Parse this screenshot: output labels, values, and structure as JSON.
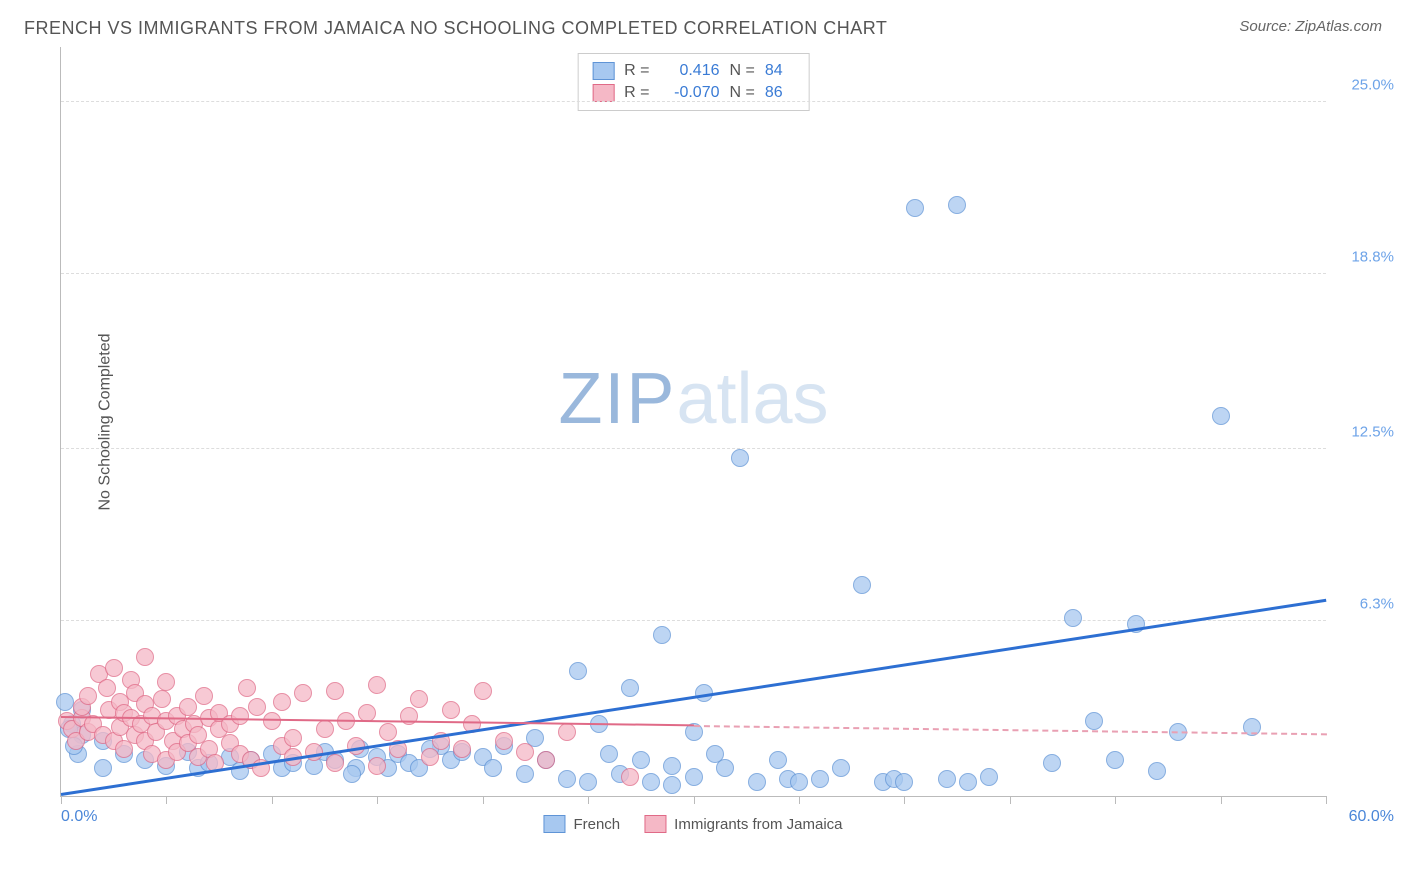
{
  "title": "FRENCH VS IMMIGRANTS FROM JAMAICA NO SCHOOLING COMPLETED CORRELATION CHART",
  "source_prefix": "Source: ",
  "source_name": "ZipAtlas.com",
  "watermark_a": "ZIP",
  "watermark_b": "atlas",
  "chart": {
    "type": "scatter",
    "background_color": "#ffffff",
    "grid_color": "#dddddd",
    "axis_color": "#bbbbbb",
    "xlim": [
      0,
      60
    ],
    "ylim": [
      0,
      27
    ],
    "x_min_label": "0.0%",
    "x_max_label": "60.0%",
    "y_ticks": [
      {
        "value": 6.3,
        "label": "6.3%"
      },
      {
        "value": 12.5,
        "label": "12.5%"
      },
      {
        "value": 18.8,
        "label": "18.8%"
      },
      {
        "value": 25.0,
        "label": "25.0%"
      }
    ],
    "x_tick_positions": [
      0,
      5,
      10,
      15,
      20,
      25,
      30,
      35,
      40,
      45,
      50,
      55,
      60
    ],
    "y_axis_label": "No Schooling Completed",
    "tick_label_color": "#6da3e8",
    "marker_radius": 9,
    "marker_border_width": 1,
    "series": [
      {
        "id": "french",
        "label": "French",
        "fill_color": "#a7c8f0",
        "border_color": "#5f94d6",
        "R": "0.416",
        "N": "84",
        "trend": {
          "x1": 0,
          "y1": 0.0,
          "x2": 60,
          "y2": 7.0,
          "color": "#2d6fd2",
          "width": 3
        },
        "points": [
          [
            0.2,
            3.4
          ],
          [
            0.5,
            2.6
          ],
          [
            0.8,
            1.5
          ],
          [
            1.0,
            2.2
          ],
          [
            2.0,
            2.0
          ],
          [
            2.0,
            1.0
          ],
          [
            3.0,
            1.5
          ],
          [
            4.0,
            1.3
          ],
          [
            5.0,
            1.1
          ],
          [
            6.0,
            1.6
          ],
          [
            6.5,
            1.0
          ],
          [
            7.0,
            1.2
          ],
          [
            8.0,
            1.4
          ],
          [
            8.5,
            0.9
          ],
          [
            9.0,
            1.3
          ],
          [
            10.0,
            1.5
          ],
          [
            10.5,
            1.0
          ],
          [
            11.0,
            1.2
          ],
          [
            12.0,
            1.1
          ],
          [
            12.5,
            1.6
          ],
          [
            13.0,
            1.3
          ],
          [
            14.0,
            1.0
          ],
          [
            14.2,
            1.7
          ],
          [
            15.0,
            1.4
          ],
          [
            15.5,
            1.0
          ],
          [
            16.0,
            1.5
          ],
          [
            16.5,
            1.2
          ],
          [
            17.0,
            1.0
          ],
          [
            18.0,
            1.8
          ],
          [
            18.5,
            1.3
          ],
          [
            19.0,
            1.6
          ],
          [
            20.0,
            1.4
          ],
          [
            20.5,
            1.0
          ],
          [
            21.0,
            1.8
          ],
          [
            22.0,
            0.8
          ],
          [
            22.5,
            2.1
          ],
          [
            23.0,
            1.3
          ],
          [
            24.0,
            0.6
          ],
          [
            24.5,
            4.5
          ],
          [
            25.0,
            0.5
          ],
          [
            25.5,
            2.6
          ],
          [
            26.0,
            1.5
          ],
          [
            26.5,
            0.8
          ],
          [
            27.0,
            3.9
          ],
          [
            27.5,
            1.3
          ],
          [
            28.0,
            0.5
          ],
          [
            28.5,
            5.8
          ],
          [
            29.0,
            1.1
          ],
          [
            29.0,
            0.4
          ],
          [
            30.0,
            0.7
          ],
          [
            30.5,
            3.7
          ],
          [
            31.0,
            1.5
          ],
          [
            31.5,
            1.0
          ],
          [
            32.2,
            12.2
          ],
          [
            33.0,
            0.5
          ],
          [
            34.0,
            1.3
          ],
          [
            34.5,
            0.6
          ],
          [
            35.0,
            0.5
          ],
          [
            36.0,
            0.6
          ],
          [
            37.0,
            1.0
          ],
          [
            38.0,
            7.6
          ],
          [
            39.0,
            0.5
          ],
          [
            39.5,
            0.6
          ],
          [
            40.0,
            0.5
          ],
          [
            40.5,
            21.2
          ],
          [
            42.5,
            21.3
          ],
          [
            42.0,
            0.6
          ],
          [
            43.0,
            0.5
          ],
          [
            44.0,
            0.7
          ],
          [
            47.0,
            1.2
          ],
          [
            48.0,
            6.4
          ],
          [
            49.0,
            2.7
          ],
          [
            50.0,
            1.3
          ],
          [
            51.0,
            6.2
          ],
          [
            52.0,
            0.9
          ],
          [
            53.0,
            2.3
          ],
          [
            55.0,
            13.7
          ],
          [
            56.5,
            2.5
          ],
          [
            1.0,
            3.1
          ],
          [
            0.4,
            2.4
          ],
          [
            0.6,
            1.8
          ],
          [
            13.8,
            0.8
          ],
          [
            17.5,
            1.7
          ],
          [
            30.0,
            2.3
          ]
        ]
      },
      {
        "id": "jamaica",
        "label": "Immigrants from Jamaica",
        "fill_color": "#f5b8c6",
        "border_color": "#e06a87",
        "R": "-0.070",
        "N": "86",
        "trend_solid": {
          "x1": 0,
          "y1": 2.8,
          "x2": 30,
          "y2": 2.5,
          "color": "#e06a87",
          "width": 2
        },
        "trend_dashed": {
          "x1": 30,
          "y1": 2.5,
          "x2": 60,
          "y2": 2.2,
          "color": "#e9a0b3",
          "width": 2
        },
        "points": [
          [
            0.3,
            2.7
          ],
          [
            0.5,
            2.4
          ],
          [
            0.7,
            2.0
          ],
          [
            1.0,
            2.8
          ],
          [
            1.0,
            3.2
          ],
          [
            1.3,
            2.3
          ],
          [
            1.3,
            3.6
          ],
          [
            1.5,
            2.6
          ],
          [
            1.8,
            4.4
          ],
          [
            2.0,
            2.2
          ],
          [
            2.2,
            3.9
          ],
          [
            2.3,
            3.1
          ],
          [
            2.5,
            2.0
          ],
          [
            2.5,
            4.6
          ],
          [
            2.8,
            3.4
          ],
          [
            2.8,
            2.5
          ],
          [
            3.0,
            3.0
          ],
          [
            3.0,
            1.7
          ],
          [
            3.3,
            4.2
          ],
          [
            3.3,
            2.8
          ],
          [
            3.5,
            3.7
          ],
          [
            3.5,
            2.2
          ],
          [
            3.8,
            2.6
          ],
          [
            4.0,
            5.0
          ],
          [
            4.0,
            2.0
          ],
          [
            4.0,
            3.3
          ],
          [
            4.3,
            1.5
          ],
          [
            4.3,
            2.9
          ],
          [
            4.5,
            2.3
          ],
          [
            4.8,
            3.5
          ],
          [
            5.0,
            2.7
          ],
          [
            5.0,
            4.1
          ],
          [
            5.0,
            1.3
          ],
          [
            5.3,
            2.0
          ],
          [
            5.5,
            2.9
          ],
          [
            5.5,
            1.6
          ],
          [
            5.8,
            2.4
          ],
          [
            6.0,
            3.2
          ],
          [
            6.0,
            1.9
          ],
          [
            6.3,
            2.6
          ],
          [
            6.5,
            1.4
          ],
          [
            6.5,
            2.2
          ],
          [
            6.8,
            3.6
          ],
          [
            7.0,
            1.7
          ],
          [
            7.0,
            2.8
          ],
          [
            7.3,
            1.2
          ],
          [
            7.5,
            2.4
          ],
          [
            7.5,
            3.0
          ],
          [
            8.0,
            1.9
          ],
          [
            8.0,
            2.6
          ],
          [
            8.5,
            1.5
          ],
          [
            8.5,
            2.9
          ],
          [
            8.8,
            3.9
          ],
          [
            9.0,
            1.3
          ],
          [
            9.3,
            3.2
          ],
          [
            9.5,
            1.0
          ],
          [
            10.0,
            2.7
          ],
          [
            10.5,
            1.8
          ],
          [
            10.5,
            3.4
          ],
          [
            11.0,
            1.4
          ],
          [
            11.0,
            2.1
          ],
          [
            11.5,
            3.7
          ],
          [
            12.0,
            1.6
          ],
          [
            12.5,
            2.4
          ],
          [
            13.0,
            3.8
          ],
          [
            13.0,
            1.2
          ],
          [
            13.5,
            2.7
          ],
          [
            14.0,
            1.8
          ],
          [
            14.5,
            3.0
          ],
          [
            15.0,
            1.1
          ],
          [
            15.0,
            4.0
          ],
          [
            15.5,
            2.3
          ],
          [
            16.0,
            1.7
          ],
          [
            16.5,
            2.9
          ],
          [
            17.0,
            3.5
          ],
          [
            17.5,
            1.4
          ],
          [
            18.0,
            2.0
          ],
          [
            18.5,
            3.1
          ],
          [
            19.0,
            1.7
          ],
          [
            19.5,
            2.6
          ],
          [
            20.0,
            3.8
          ],
          [
            21.0,
            2.0
          ],
          [
            22.0,
            1.6
          ],
          [
            23.0,
            1.3
          ],
          [
            24.0,
            2.3
          ],
          [
            27.0,
            0.7
          ]
        ]
      }
    ],
    "legend_R_label": "R =",
    "legend_N_label": "N ="
  }
}
